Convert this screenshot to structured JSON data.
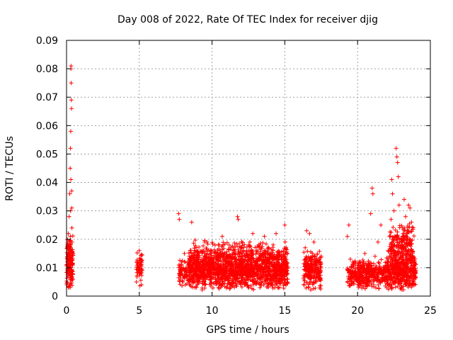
{
  "chart_data": {
    "type": "scatter",
    "title": "Day 008 of 2022, Rate Of TEC Index for receiver djig",
    "xlabel": "GPS time / hours",
    "ylabel": "ROTI / TECUs",
    "xlim": [
      0,
      25
    ],
    "ylim": [
      0,
      0.09
    ],
    "x_ticks": [
      0,
      5,
      10,
      15,
      20,
      25
    ],
    "x_tick_labels": [
      "0",
      "5",
      "10",
      "15",
      "20",
      "25"
    ],
    "y_ticks": [
      0,
      0.01,
      0.02,
      0.03,
      0.04,
      0.05,
      0.06,
      0.07,
      0.08,
      0.09
    ],
    "y_tick_labels": [
      "0",
      "0.01",
      "0.02",
      "0.03",
      "0.04",
      "0.05",
      "0.06",
      "0.07",
      "0.08",
      "0.09"
    ],
    "grid": true,
    "marker": "+",
    "series": [
      {
        "name": "ROTI",
        "color": "#ff0000",
        "points": [
          [
            0.02,
            0.004
          ],
          [
            0.05,
            0.012
          ],
          [
            0.08,
            0.018
          ],
          [
            0.1,
            0.007
          ],
          [
            0.12,
            0.022
          ],
          [
            0.14,
            0.003
          ],
          [
            0.16,
            0.015
          ],
          [
            0.18,
            0.028
          ],
          [
            0.2,
            0.009
          ],
          [
            0.22,
            0.036
          ],
          [
            0.24,
            0.013
          ],
          [
            0.25,
            0.045
          ],
          [
            0.26,
            0.021
          ],
          [
            0.27,
            0.052
          ],
          [
            0.28,
            0.03
          ],
          [
            0.29,
            0.058
          ],
          [
            0.3,
            0.041
          ],
          [
            0.3,
            0.08
          ],
          [
            0.31,
            0.081
          ],
          [
            0.32,
            0.075
          ],
          [
            0.33,
            0.069
          ],
          [
            0.34,
            0.066
          ],
          [
            0.35,
            0.037
          ],
          [
            0.36,
            0.031
          ],
          [
            0.37,
            0.024
          ],
          [
            0.38,
            0.019
          ],
          [
            0.4,
            0.011
          ],
          [
            0.42,
            0.006
          ],
          [
            4.8,
            0.005
          ],
          [
            4.9,
            0.011
          ],
          [
            5.0,
            0.016
          ],
          [
            5.05,
            0.008
          ],
          [
            5.1,
            0.013
          ],
          [
            5.15,
            0.004
          ],
          [
            5.2,
            0.009
          ],
          [
            7.7,
            0.029
          ],
          [
            7.75,
            0.027
          ],
          [
            7.8,
            0.008
          ],
          [
            7.9,
            0.012
          ],
          [
            8.0,
            0.005
          ],
          [
            8.1,
            0.015
          ],
          [
            8.2,
            0.007
          ],
          [
            8.4,
            0.009
          ],
          [
            8.6,
            0.026
          ],
          [
            8.7,
            0.011
          ],
          [
            8.9,
            0.017
          ],
          [
            9.1,
            0.006
          ],
          [
            9.3,
            0.013
          ],
          [
            9.5,
            0.019
          ],
          [
            9.7,
            0.008
          ],
          [
            9.9,
            0.016
          ],
          [
            10.1,
            0.012
          ],
          [
            10.3,
            0.005
          ],
          [
            10.5,
            0.018
          ],
          [
            10.7,
            0.021
          ],
          [
            10.9,
            0.009
          ],
          [
            11.1,
            0.014
          ],
          [
            11.3,
            0.007
          ],
          [
            11.5,
            0.017
          ],
          [
            11.75,
            0.028
          ],
          [
            11.8,
            0.027
          ],
          [
            11.9,
            0.011
          ],
          [
            12.1,
            0.016
          ],
          [
            12.3,
            0.006
          ],
          [
            12.6,
            0.019
          ],
          [
            12.8,
            0.022
          ],
          [
            13.0,
            0.012
          ],
          [
            13.2,
            0.018
          ],
          [
            13.4,
            0.007
          ],
          [
            13.6,
            0.021
          ],
          [
            13.8,
            0.015
          ],
          [
            14.0,
            0.009
          ],
          [
            14.2,
            0.018
          ],
          [
            14.4,
            0.022
          ],
          [
            14.6,
            0.013
          ],
          [
            14.8,
            0.006
          ],
          [
            15.0,
            0.025
          ],
          [
            15.05,
            0.011
          ],
          [
            16.3,
            0.006
          ],
          [
            16.4,
            0.017
          ],
          [
            16.5,
            0.023
          ],
          [
            16.6,
            0.011
          ],
          [
            16.7,
            0.022
          ],
          [
            16.8,
            0.008
          ],
          [
            16.9,
            0.014
          ],
          [
            17.0,
            0.019
          ],
          [
            17.1,
            0.005
          ],
          [
            17.2,
            0.012
          ],
          [
            17.3,
            0.009
          ],
          [
            17.4,
            0.003
          ],
          [
            19.3,
            0.021
          ],
          [
            19.4,
            0.025
          ],
          [
            19.5,
            0.013
          ],
          [
            19.6,
            0.006
          ],
          [
            19.7,
            0.01
          ],
          [
            19.9,
            0.008
          ],
          [
            20.1,
            0.012
          ],
          [
            20.3,
            0.005
          ],
          [
            20.5,
            0.015
          ],
          [
            20.7,
            0.01
          ],
          [
            20.9,
            0.029
          ],
          [
            21.0,
            0.038
          ],
          [
            21.05,
            0.036
          ],
          [
            21.1,
            0.007
          ],
          [
            21.2,
            0.014
          ],
          [
            21.4,
            0.019
          ],
          [
            21.6,
            0.025
          ],
          [
            21.8,
            0.008
          ],
          [
            22.0,
            0.012
          ],
          [
            22.1,
            0.016
          ],
          [
            22.2,
            0.021
          ],
          [
            22.3,
            0.027
          ],
          [
            22.35,
            0.041
          ],
          [
            22.4,
            0.036
          ],
          [
            22.5,
            0.03
          ],
          [
            22.6,
            0.021
          ],
          [
            22.65,
            0.052
          ],
          [
            22.7,
            0.049
          ],
          [
            22.75,
            0.047
          ],
          [
            22.8,
            0.042
          ],
          [
            22.85,
            0.032
          ],
          [
            22.9,
            0.019
          ],
          [
            23.0,
            0.012
          ],
          [
            23.1,
            0.024
          ],
          [
            23.2,
            0.034
          ],
          [
            23.3,
            0.028
          ],
          [
            23.4,
            0.022
          ],
          [
            23.5,
            0.032
          ],
          [
            23.6,
            0.031
          ],
          [
            23.7,
            0.026
          ],
          [
            23.8,
            0.014
          ],
          [
            23.9,
            0.007
          ]
        ],
        "clusters": [
          {
            "x_range": [
              0.0,
              0.45
            ],
            "y_range": [
              0.002,
              0.022
            ],
            "count": 150
          },
          {
            "x_range": [
              4.8,
              5.2
            ],
            "y_range": [
              0.003,
              0.016
            ],
            "count": 50
          },
          {
            "x_range": [
              7.7,
              8.4
            ],
            "y_range": [
              0.003,
              0.014
            ],
            "count": 70
          },
          {
            "x_range": [
              8.4,
              15.2
            ],
            "y_range": [
              0.002,
              0.016
            ],
            "count": 1500
          },
          {
            "x_range": [
              8.4,
              15.2
            ],
            "y_range": [
              0.01,
              0.02
            ],
            "count": 300
          },
          {
            "x_range": [
              16.3,
              17.5
            ],
            "y_range": [
              0.002,
              0.016
            ],
            "count": 230
          },
          {
            "x_range": [
              19.3,
              21.9
            ],
            "y_range": [
              0.002,
              0.013
            ],
            "count": 380
          },
          {
            "x_range": [
              21.9,
              24.0
            ],
            "y_range": [
              0.002,
              0.016
            ],
            "count": 500
          },
          {
            "x_range": [
              22.2,
              23.9
            ],
            "y_range": [
              0.01,
              0.026
            ],
            "count": 200
          }
        ]
      }
    ]
  }
}
